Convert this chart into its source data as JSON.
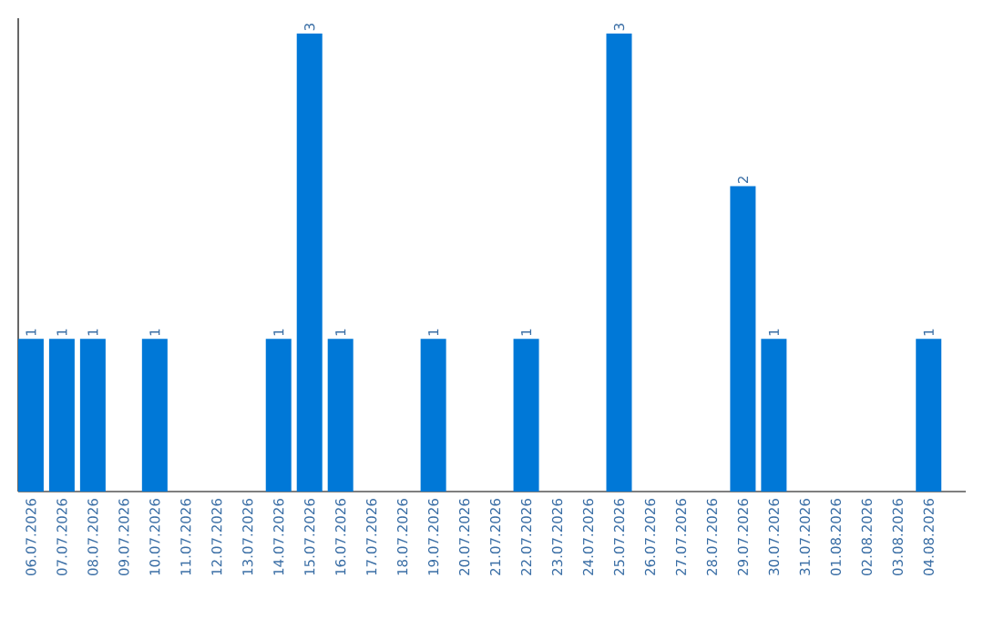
{
  "chart_data": {
    "type": "bar",
    "categories": [
      "06.07.2026",
      "07.07.2026",
      "08.07.2026",
      "09.07.2026",
      "10.07.2026",
      "11.07.2026",
      "12.07.2026",
      "13.07.2026",
      "14.07.2026",
      "15.07.2026",
      "16.07.2026",
      "17.07.2026",
      "18.07.2026",
      "19.07.2026",
      "20.07.2026",
      "21.07.2026",
      "22.07.2026",
      "23.07.2026",
      "24.07.2026",
      "25.07.2026",
      "26.07.2026",
      "27.07.2026",
      "28.07.2026",
      "29.07.2026",
      "30.07.2026",
      "31.07.2026",
      "01.08.2026",
      "02.08.2026",
      "03.08.2026",
      "04.08.2026"
    ],
    "values": [
      1,
      1,
      1,
      0,
      1,
      0,
      0,
      0,
      1,
      3,
      1,
      0,
      0,
      1,
      0,
      0,
      1,
      0,
      0,
      3,
      0,
      0,
      0,
      2,
      1,
      0,
      0,
      0,
      0,
      1
    ],
    "value_labels": [
      "1",
      "1",
      "1",
      null,
      "1",
      null,
      null,
      null,
      "1",
      "3",
      "1",
      null,
      null,
      "1",
      null,
      null,
      "1",
      null,
      null,
      "3",
      null,
      null,
      null,
      "2",
      "1",
      null,
      null,
      null,
      null,
      "1"
    ],
    "color": "#0078d7",
    "ylim": [
      0,
      3.1
    ],
    "tick_labels": "x",
    "grid": false
  }
}
